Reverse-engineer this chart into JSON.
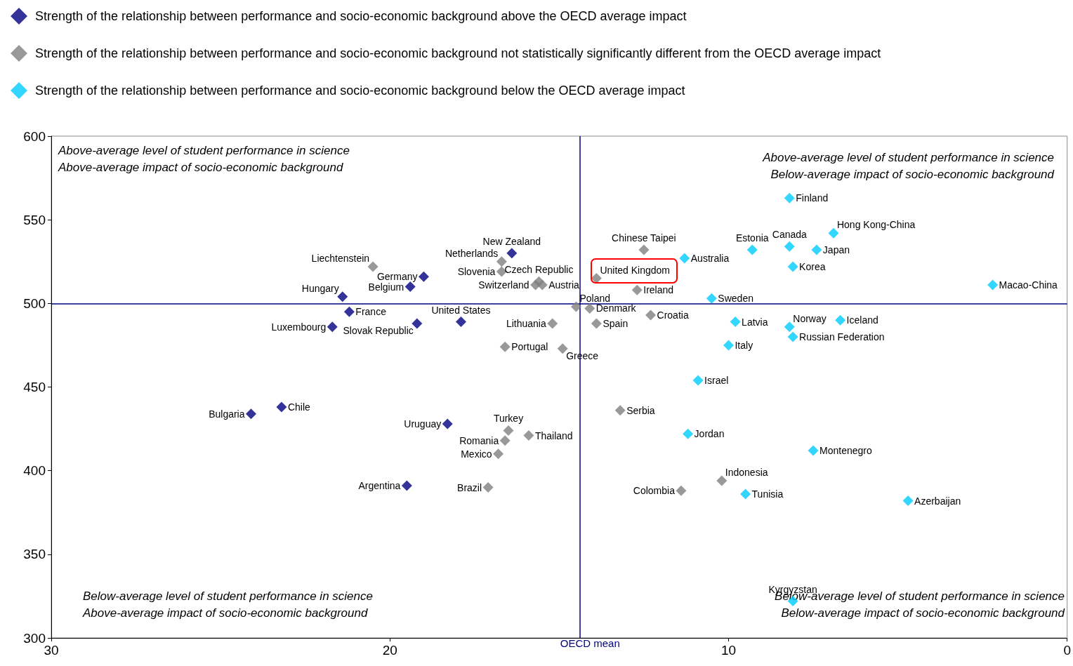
{
  "chart_data": {
    "type": "scatter",
    "xlim": [
      30,
      0
    ],
    "xticks": [
      30,
      20,
      10,
      0
    ],
    "ylim": [
      300,
      600
    ],
    "yticks": [
      300,
      350,
      400,
      450,
      500,
      550,
      600
    ],
    "grid": false,
    "legend": "top left",
    "marker": "diamond",
    "series": [
      {
        "name": "Strength of the relationship between performance and socio-economic background above the OECD average impact",
        "color": "#000080",
        "x": [
          16.4,
          19.0,
          19.4,
          21.4,
          21.2,
          21.7,
          19.2,
          17.9,
          23.2,
          24.1,
          18.3,
          19.5
        ],
        "values": [
          530,
          516,
          510,
          504,
          495,
          486,
          488,
          489,
          438,
          434,
          428,
          391
        ]
      },
      {
        "name": "Strength of the relationship between performance and socio-economic background not statistically significantly different from the OECD average impact",
        "color": "#808080",
        "x": [
          20.5,
          16.7,
          16.7,
          15.7,
          15.6,
          15.5,
          15.2,
          16.6,
          14.9,
          14.5,
          14.1,
          13.9,
          13.9,
          12.5,
          12.7,
          12.3,
          13.2,
          16.5,
          16.6,
          15.9,
          16.8,
          17.1,
          11.4,
          10.2
        ],
        "values": [
          522,
          525,
          519,
          511,
          513,
          511,
          488,
          474,
          473,
          498,
          497,
          488,
          515,
          532,
          508,
          493,
          436,
          424,
          418,
          421,
          410,
          390,
          388,
          394
        ]
      },
      {
        "name": "Strength of the relationship between performance and socio-economic background below the OECD average impact",
        "color": "#00ccff",
        "x": [
          8.2,
          6.9,
          8.2,
          7.4,
          9.3,
          11.3,
          8.1,
          2.2,
          10.5,
          9.8,
          8.2,
          6.7,
          8.1,
          10.0,
          10.9,
          11.2,
          7.5,
          9.5,
          4.7,
          8.1
        ],
        "values": [
          563,
          542,
          534,
          532,
          532,
          527,
          522,
          511,
          503,
          489,
          486,
          490,
          480,
          475,
          454,
          422,
          412,
          386,
          382,
          322
        ]
      }
    ],
    "ref_lines": [
      {
        "axis": "x",
        "value": 14.4,
        "label": "OECD mean",
        "color": "#000080"
      },
      {
        "axis": "y",
        "value": 500,
        "color": "#000080"
      }
    ],
    "annotations": [
      "Above-average level of student performance in science\nAbove-average impact of socio-economic background",
      "Above-average level of student performance in science\nBelow-average impact of socio-economic background",
      "Below-average level of student performance in science\nAbove-average impact of socio-economic background",
      "Below-average level of student performance in science\nBelow-average impact of socio-economic background",
      {
        "text": "New Zealand",
        "x": 16.4,
        "y": 530
      },
      {
        "text": "Germany",
        "x": 19.0,
        "y": 516
      },
      {
        "text": "Belgium",
        "x": 19.4,
        "y": 510
      },
      {
        "text": "Hungary",
        "x": 21.4,
        "y": 504
      },
      {
        "text": "France",
        "x": 21.2,
        "y": 495
      },
      {
        "text": "Luxembourg",
        "x": 21.7,
        "y": 486
      },
      {
        "text": "Slovak Republic",
        "x": 19.2,
        "y": 488
      },
      {
        "text": "United States",
        "x": 17.9,
        "y": 489
      },
      {
        "text": "Chile",
        "x": 23.2,
        "y": 438
      },
      {
        "text": "Bulgaria",
        "x": 24.1,
        "y": 434
      },
      {
        "text": "Uruguay",
        "x": 18.3,
        "y": 428
      },
      {
        "text": "Argentina",
        "x": 19.5,
        "y": 391
      },
      {
        "text": "Liechtenstein",
        "x": 20.5,
        "y": 522
      },
      {
        "text": "Netherlands",
        "x": 16.7,
        "y": 525
      },
      {
        "text": "Slovenia",
        "x": 16.7,
        "y": 519
      },
      {
        "text": "Switzerland",
        "x": 15.7,
        "y": 511
      },
      {
        "text": "Czech Republic",
        "x": 15.6,
        "y": 513
      },
      {
        "text": "Austria",
        "x": 15.5,
        "y": 511
      },
      {
        "text": "Lithuania",
        "x": 15.2,
        "y": 488
      },
      {
        "text": "Portugal",
        "x": 16.6,
        "y": 474
      },
      {
        "text": "Greece",
        "x": 14.9,
        "y": 473
      },
      {
        "text": "Poland",
        "x": 14.5,
        "y": 498
      },
      {
        "text": "Denmark",
        "x": 14.1,
        "y": 497
      },
      {
        "text": "Spain",
        "x": 13.9,
        "y": 488
      },
      {
        "text": "United Kingdom",
        "x": 13.9,
        "y": 515
      },
      {
        "text": "Chinese Taipei",
        "x": 12.5,
        "y": 532
      },
      {
        "text": "Ireland",
        "x": 12.7,
        "y": 508
      },
      {
        "text": "Croatia",
        "x": 12.3,
        "y": 493
      },
      {
        "text": "Serbia",
        "x": 13.2,
        "y": 436
      },
      {
        "text": "Turkey",
        "x": 16.5,
        "y": 424
      },
      {
        "text": "Romania",
        "x": 16.6,
        "y": 418
      },
      {
        "text": "Thailand",
        "x": 15.9,
        "y": 421
      },
      {
        "text": "Mexico",
        "x": 16.8,
        "y": 410
      },
      {
        "text": "Brazil",
        "x": 17.1,
        "y": 390
      },
      {
        "text": "Colombia",
        "x": 11.4,
        "y": 388
      },
      {
        "text": "Indonesia",
        "x": 10.2,
        "y": 394
      },
      {
        "text": "Finland",
        "x": 8.2,
        "y": 563
      },
      {
        "text": "Hong Kong-China",
        "x": 6.9,
        "y": 542
      },
      {
        "text": "Canada",
        "x": 8.2,
        "y": 534
      },
      {
        "text": "Japan",
        "x": 7.4,
        "y": 532
      },
      {
        "text": "Estonia",
        "x": 9.3,
        "y": 532
      },
      {
        "text": "Australia",
        "x": 11.3,
        "y": 527
      },
      {
        "text": "Korea",
        "x": 8.1,
        "y": 522
      },
      {
        "text": "Macao-China",
        "x": 2.2,
        "y": 511
      },
      {
        "text": "Sweden",
        "x": 10.5,
        "y": 503
      },
      {
        "text": "Latvia",
        "x": 9.8,
        "y": 489
      },
      {
        "text": "Norway",
        "x": 8.2,
        "y": 486
      },
      {
        "text": "Iceland",
        "x": 6.7,
        "y": 490
      },
      {
        "text": "Russian Federation",
        "x": 8.1,
        "y": 480
      },
      {
        "text": "Italy",
        "x": 10.0,
        "y": 475
      },
      {
        "text": "Israel",
        "x": 10.9,
        "y": 454
      },
      {
        "text": "Jordan",
        "x": 11.2,
        "y": 422
      },
      {
        "text": "Montenegro",
        "x": 7.5,
        "y": 412
      },
      {
        "text": "Tunisia",
        "x": 9.5,
        "y": 386
      },
      {
        "text": "Azerbaijan",
        "x": 4.7,
        "y": 382
      },
      {
        "text": "Kyrgyzstan",
        "x": 8.1,
        "y": 322
      }
    ]
  }
}
